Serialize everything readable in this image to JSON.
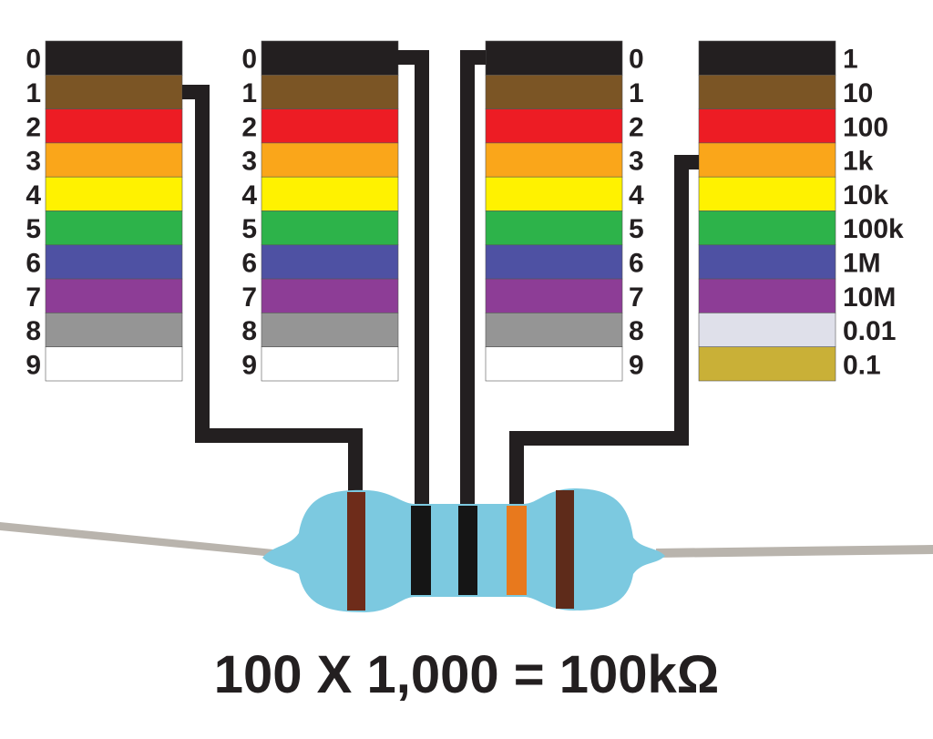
{
  "colors": [
    "#231f20",
    "#7b5525",
    "#ed1c24",
    "#faa61a",
    "#fff200",
    "#2db34a",
    "#4e51a3",
    "#8d3d96",
    "#959595",
    "#ffffff"
  ],
  "multiplier_colors": [
    "#231f20",
    "#7b5525",
    "#ed1c24",
    "#faa61a",
    "#fff200",
    "#2db34a",
    "#4e51a3",
    "#8d3d96",
    "#dfe0ea",
    "#c9b037"
  ],
  "digit_labels": [
    "0",
    "1",
    "2",
    "3",
    "4",
    "5",
    "6",
    "7",
    "8",
    "9"
  ],
  "multiplier_labels": [
    "1",
    "10",
    "100",
    "1k",
    "10k",
    "100k",
    "1M",
    "10M",
    "0.01",
    "0.1"
  ],
  "resistor": {
    "body_color": "#7cc9e0",
    "bands": [
      {
        "name": "brown",
        "color": "#6e2c1a",
        "selected_index": 1
      },
      {
        "name": "black",
        "color": "#151515",
        "selected_index": 0
      },
      {
        "name": "black",
        "color": "#151515",
        "selected_index": 0
      },
      {
        "name": "orange",
        "color": "#e8791d",
        "selected_index": 3
      },
      {
        "name": "brown",
        "color": "#5e2b1a"
      }
    ]
  },
  "equation": "100 X 1,000 = 100kΩ"
}
